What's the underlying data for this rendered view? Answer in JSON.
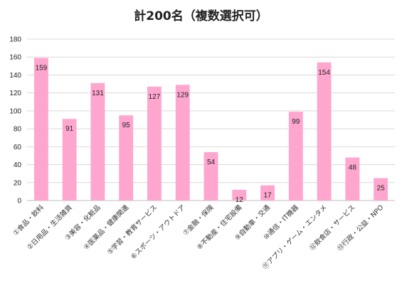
{
  "chart_data": {
    "type": "bar",
    "title": "計200名（複数選択可）",
    "xlabel": "",
    "ylabel": "",
    "ylim": [
      0,
      180
    ],
    "yticks": [
      0,
      20,
      40,
      60,
      80,
      100,
      120,
      140,
      160,
      180
    ],
    "grid": true,
    "bar_color": "#ffa6cf",
    "categories": [
      "①食品・飲料",
      "②日用品・生活雑貨",
      "③美容・化粧品",
      "④医薬品・健康関連",
      "⑤学習・教育サービス",
      "⑥スポーツ・アウトドア",
      "⑦金融・保険",
      "⑧不動産・住宅設備",
      "⑨自動車・交通",
      "⑩通信・IT機器",
      "⑪アプリ・ゲーム・エンタメ",
      "⑫飲食店・サービス",
      "⑬行政・公益・NPO"
    ],
    "values": [
      159,
      91,
      131,
      95,
      127,
      129,
      54,
      12,
      17,
      99,
      154,
      48,
      25
    ]
  }
}
